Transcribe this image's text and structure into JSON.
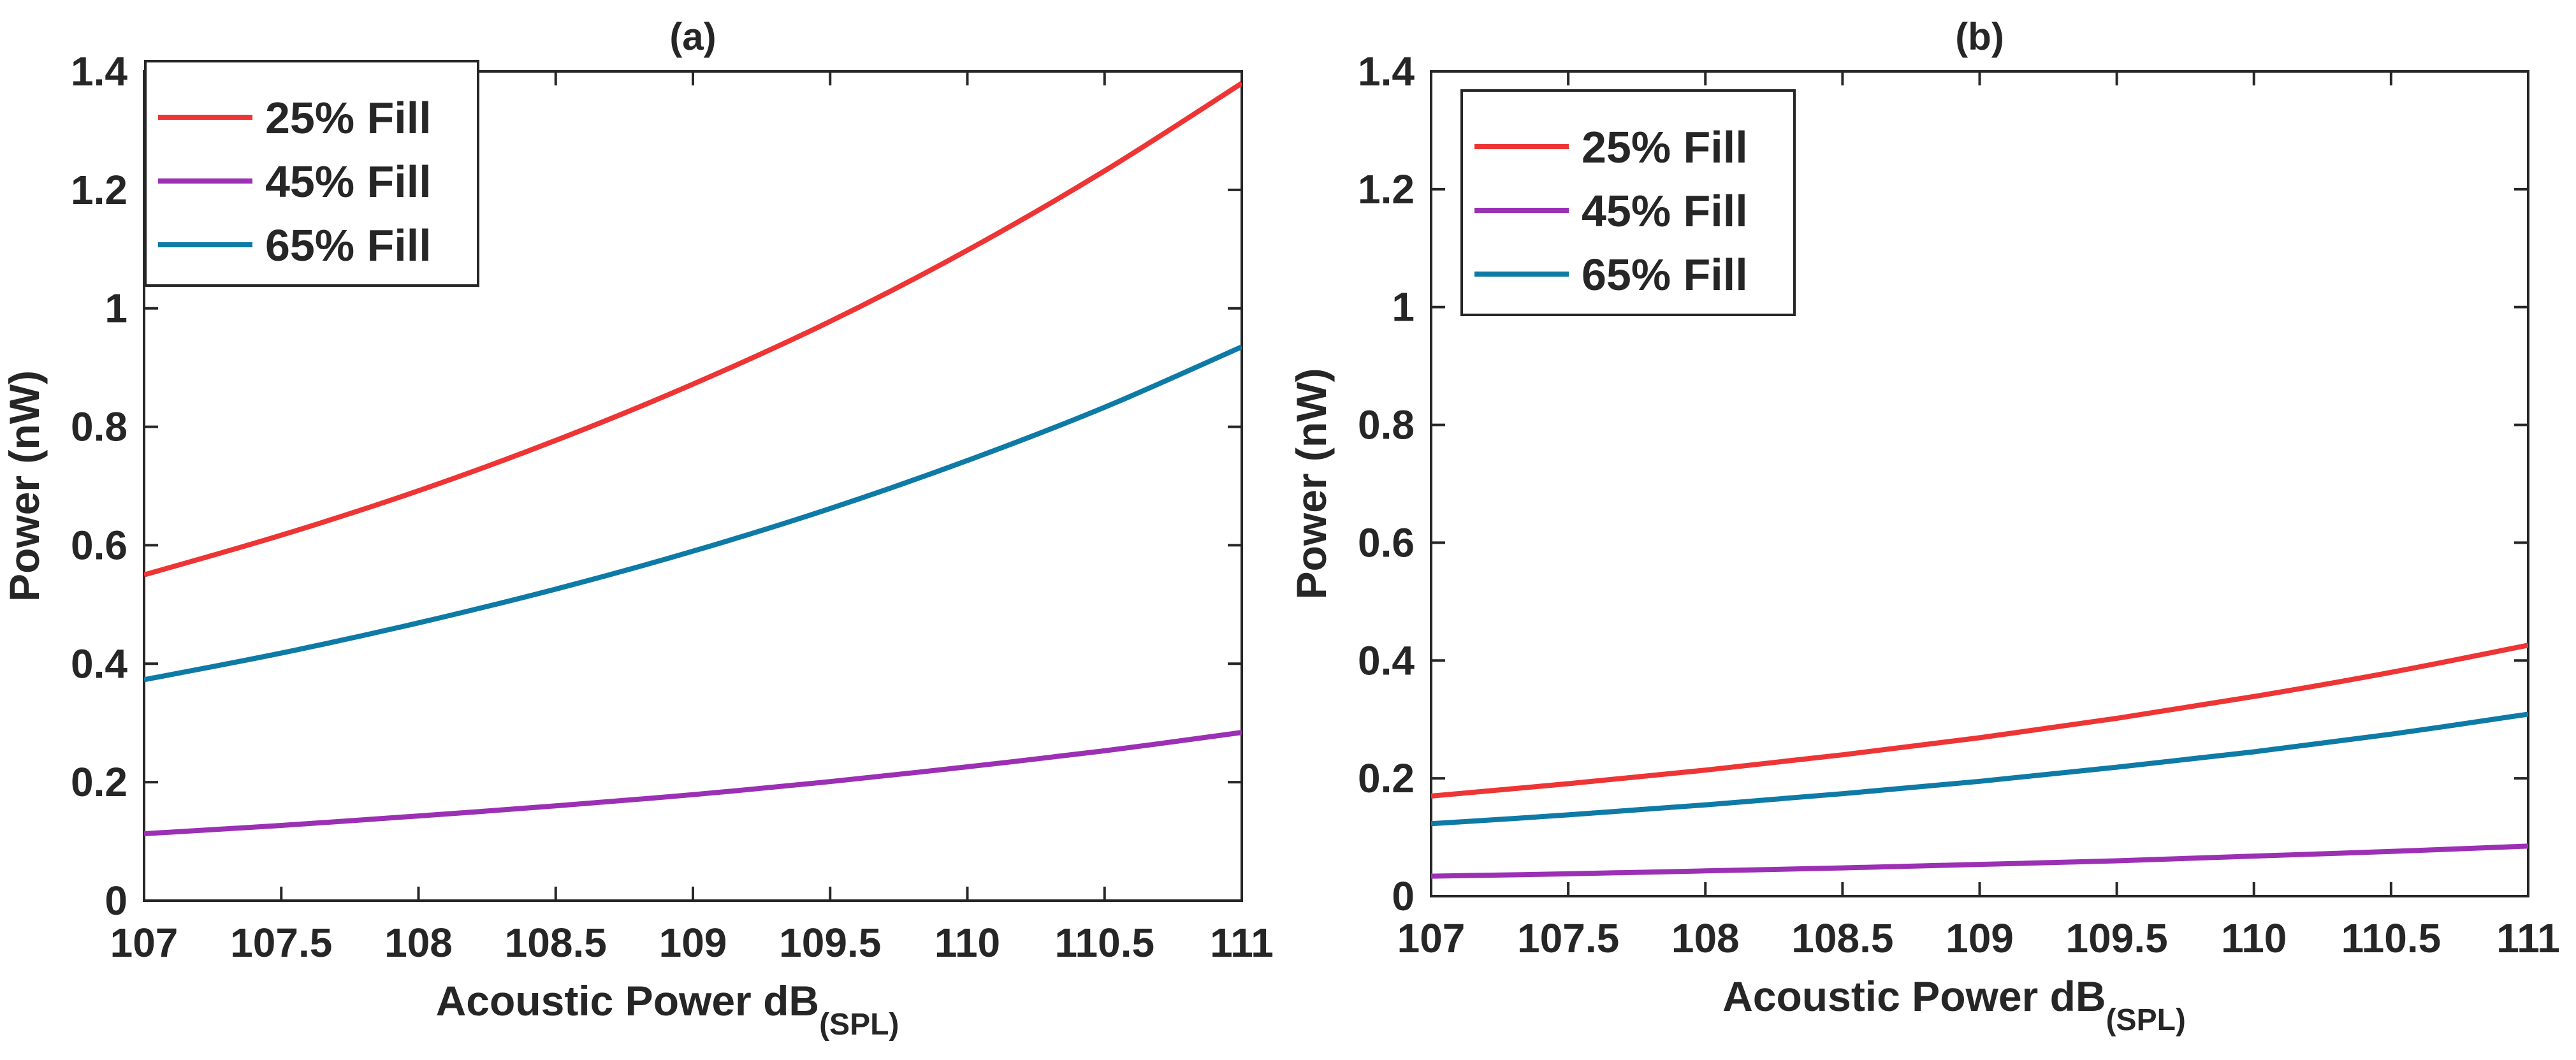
{
  "colors": {
    "25% Fill": "#ee3535",
    "45% Fill": "#9b30b4",
    "65% Fill": "#0e7aa6"
  },
  "chart_data": [
    {
      "type": "line",
      "title": "(a)",
      "xlabel": "Acoustic Power dB",
      "xlabel_subscript": "(SPL)",
      "ylabel": "Power (nW)",
      "xlim": [
        107,
        111
      ],
      "ylim": [
        0,
        1.4
      ],
      "xticks": [
        "107",
        "107.5",
        "108",
        "108.5",
        "109",
        "109.5",
        "110",
        "110.5",
        "111"
      ],
      "yticks": [
        "0",
        "0.2",
        "0.4",
        "0.6",
        "0.8",
        "1",
        "1.2",
        "1.4"
      ],
      "legend_position": "top-left",
      "x": [
        107,
        107.5,
        108,
        108.5,
        109,
        109.5,
        110,
        110.5,
        111
      ],
      "series": [
        {
          "name": "25% Fill",
          "values": [
            0.55,
            0.617,
            0.692,
            0.777,
            0.872,
            0.978,
            1.098,
            1.232,
            1.38
          ]
        },
        {
          "name": "45% Fill",
          "values": [
            0.113,
            0.127,
            0.143,
            0.16,
            0.179,
            0.201,
            0.226,
            0.253,
            0.284
          ]
        },
        {
          "name": "65% Fill",
          "values": [
            0.373,
            0.418,
            0.469,
            0.526,
            0.59,
            0.662,
            0.743,
            0.833,
            0.935
          ]
        }
      ]
    },
    {
      "type": "line",
      "title": "(b)",
      "xlabel": "Acoustic Power dB",
      "xlabel_subscript": "(SPL)",
      "ylabel": "Power (nW)",
      "xlim": [
        107,
        111
      ],
      "ylim": [
        0,
        1.4
      ],
      "xticks": [
        "107",
        "107.5",
        "108",
        "108.5",
        "109",
        "109.5",
        "110",
        "110.5",
        "111"
      ],
      "yticks": [
        "0",
        "0.2",
        "0.4",
        "0.6",
        "0.8",
        "1",
        "1.2",
        "1.4"
      ],
      "legend_position": "top-left",
      "x": [
        107,
        107.5,
        108,
        108.5,
        109,
        109.5,
        110,
        110.5,
        111
      ],
      "series": [
        {
          "name": "25% Fill",
          "values": [
            0.17,
            0.191,
            0.214,
            0.24,
            0.269,
            0.302,
            0.339,
            0.38,
            0.426
          ]
        },
        {
          "name": "45% Fill",
          "values": [
            0.034,
            0.038,
            0.043,
            0.048,
            0.054,
            0.06,
            0.068,
            0.076,
            0.085
          ]
        },
        {
          "name": "65% Fill",
          "values": [
            0.123,
            0.138,
            0.155,
            0.174,
            0.195,
            0.219,
            0.245,
            0.275,
            0.309
          ]
        }
      ]
    }
  ]
}
